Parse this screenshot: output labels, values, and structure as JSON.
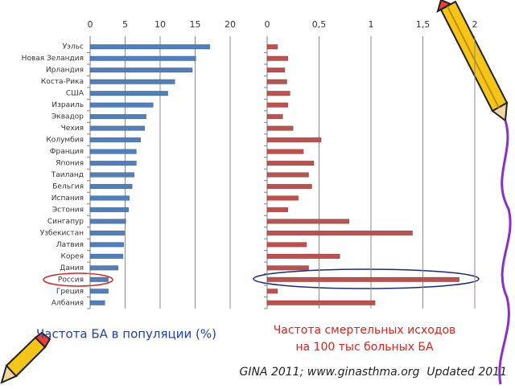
{
  "chart_data": [
    {
      "type": "hbar",
      "title": "Частота БА в популяции (%)",
      "categories": [
        "Уэльс",
        "Новая Зеландия",
        "Ирландия",
        "Коста-Рика",
        "США",
        "Израиль",
        "Эквадор",
        "Чехия",
        "Колумбия",
        "Франция",
        "Япония",
        "Таиланд",
        "Бельгия",
        "Испания",
        "Эстония",
        "Сингапур",
        "Узбекистан",
        "Латвия",
        "Корея",
        "Дания",
        "Россия",
        "Греция",
        "Албания"
      ],
      "values": [
        17.1,
        15.1,
        14.6,
        12.1,
        11.1,
        9.0,
        8.0,
        7.8,
        7.2,
        6.6,
        6.6,
        6.3,
        6.0,
        5.6,
        5.5,
        5.1,
        4.9,
        4.8,
        4.7,
        4.0,
        2.6,
        2.6,
        2.1
      ],
      "color": "#4f7fbd",
      "xlim": [
        0,
        20
      ],
      "xticks": [
        0,
        5,
        10,
        15,
        20
      ],
      "grid": true
    },
    {
      "type": "hbar",
      "title_lines": [
        "Частота смертельных исходов",
        "на 100 тыс больных БА"
      ],
      "values": [
        0.1,
        0.2,
        0.17,
        0.19,
        0.22,
        0.2,
        0.15,
        0.25,
        0.52,
        0.35,
        0.45,
        0.4,
        0.43,
        0.3,
        0.2,
        0.79,
        1.4,
        0.38,
        0.7,
        0.4,
        1.85,
        0.1,
        1.04
      ],
      "color": "#c0504d",
      "xlim": [
        0,
        2
      ],
      "xticks": [
        0,
        {
          "value": 0.5,
          "label": "0,5"
        },
        1,
        {
          "value": 1.5,
          "label": "1,5"
        },
        2
      ],
      "grid": true
    }
  ],
  "footer": "GINA 2011; www.ginasthma.org  Updated 2011"
}
